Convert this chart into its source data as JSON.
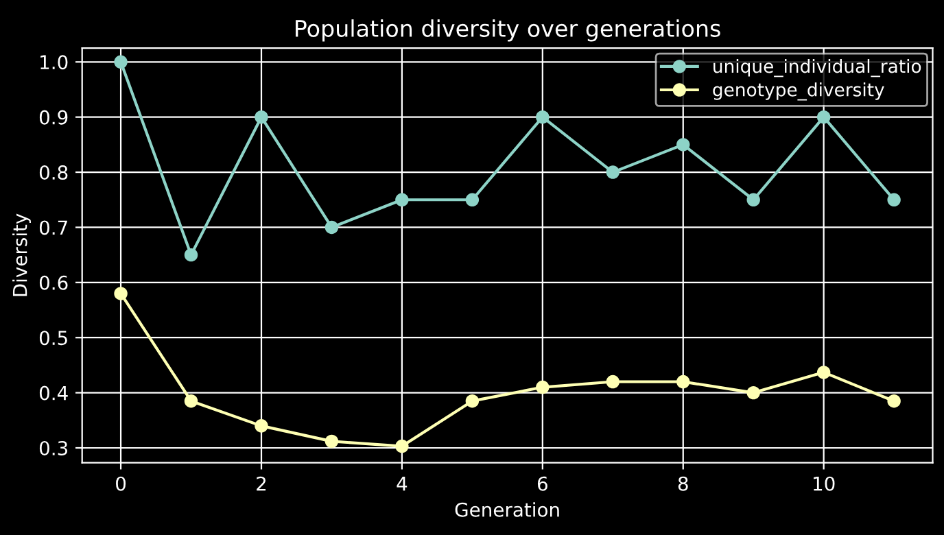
{
  "chart_data": {
    "type": "line",
    "title": "Population diversity over generations",
    "xlabel": "Generation",
    "ylabel": "Diversity",
    "x": [
      0,
      1,
      2,
      3,
      4,
      5,
      6,
      7,
      8,
      9,
      10,
      11
    ],
    "series": [
      {
        "name": "unique_individual_ratio",
        "color": "#8dd3c7",
        "values": [
          1.0,
          0.65,
          0.9,
          0.7,
          0.75,
          0.75,
          0.9,
          0.8,
          0.85,
          0.75,
          0.9,
          0.75
        ]
      },
      {
        "name": "genotype_diversity",
        "color": "#feffb3",
        "values": [
          0.58,
          0.385,
          0.34,
          0.312,
          0.303,
          0.385,
          0.41,
          0.42,
          0.42,
          0.4,
          0.437,
          0.385
        ]
      }
    ],
    "xlim": [
      -0.55,
      11.55
    ],
    "ylim": [
      0.273,
      1.025
    ],
    "xticks": [
      0,
      2,
      4,
      6,
      8,
      10
    ],
    "yticks": [
      0.3,
      0.4,
      0.5,
      0.6,
      0.7,
      0.8,
      0.9,
      {
        "value": 1.0,
        "label": "1.0"
      }
    ],
    "grid": true,
    "legend": "top right",
    "marker": "circle",
    "line_style": "solid"
  }
}
